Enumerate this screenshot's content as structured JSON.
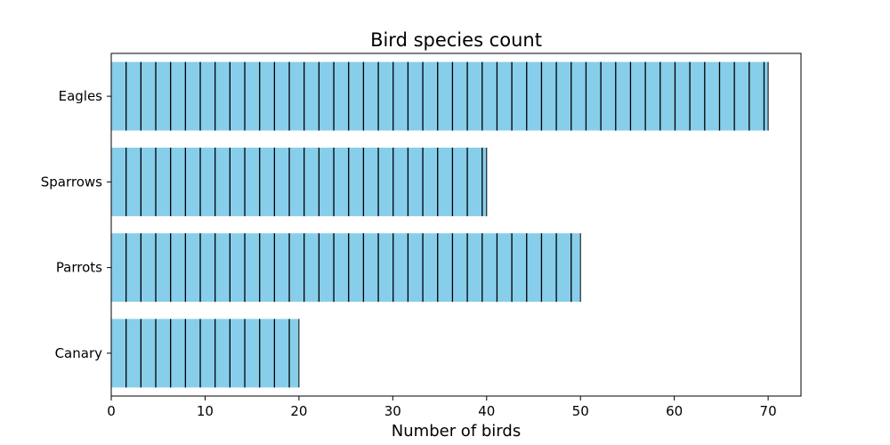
{
  "chart_data": {
    "type": "bar",
    "orientation": "horizontal",
    "title": "Bird species count",
    "xlabel": "Number of birds",
    "ylabel": "",
    "categories": [
      "Eagles",
      "Sparrows",
      "Parrots",
      "Canary"
    ],
    "values": [
      70,
      40,
      50,
      20
    ],
    "xlim": [
      0,
      73.5
    ],
    "xticks": [
      0,
      10,
      20,
      30,
      40,
      50,
      60,
      70
    ],
    "hatch": "vertical-lines",
    "grid": false,
    "legend": "none",
    "colors": {
      "bar_fill": "#87ceeb",
      "hatch": "#000000",
      "axis": "#000000"
    }
  }
}
